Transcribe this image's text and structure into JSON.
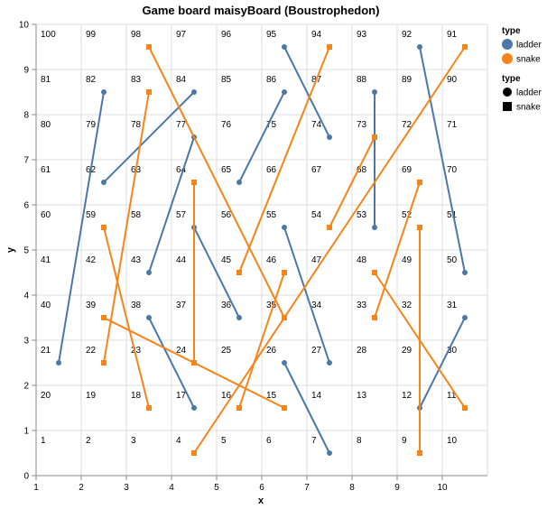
{
  "chart_data": {
    "type": "line",
    "title": "Game board maisyBoard (Boustrophedon)",
    "xlabel": "x",
    "ylabel": "y",
    "xlim": [
      1,
      11
    ],
    "ylim": [
      0,
      10
    ],
    "x_ticks": [
      1,
      2,
      3,
      4,
      5,
      6,
      7,
      8,
      9,
      10
    ],
    "y_ticks": [
      0,
      1,
      2,
      3,
      4,
      5,
      6,
      7,
      8,
      9,
      10
    ],
    "grid": true,
    "legend_position": "right",
    "colors": {
      "ladder": "#4c78a8",
      "snake": "#f58518",
      "grid": "#dddddd",
      "axis": "#888888"
    },
    "cells": [
      {
        "n": "1",
        "x": 1.1,
        "y": 0.8
      },
      {
        "n": "2",
        "x": 2.1,
        "y": 0.8
      },
      {
        "n": "3",
        "x": 3.1,
        "y": 0.8
      },
      {
        "n": "4",
        "x": 4.1,
        "y": 0.8
      },
      {
        "n": "5",
        "x": 5.1,
        "y": 0.8
      },
      {
        "n": "6",
        "x": 6.1,
        "y": 0.8
      },
      {
        "n": "7",
        "x": 7.1,
        "y": 0.8
      },
      {
        "n": "8",
        "x": 8.1,
        "y": 0.8
      },
      {
        "n": "9",
        "x": 9.1,
        "y": 0.8
      },
      {
        "n": "10",
        "x": 10.1,
        "y": 0.8
      },
      {
        "n": "20",
        "x": 1.1,
        "y": 1.8
      },
      {
        "n": "19",
        "x": 2.1,
        "y": 1.8
      },
      {
        "n": "18",
        "x": 3.1,
        "y": 1.8
      },
      {
        "n": "17",
        "x": 4.1,
        "y": 1.8
      },
      {
        "n": "16",
        "x": 5.1,
        "y": 1.8
      },
      {
        "n": "15",
        "x": 6.1,
        "y": 1.8
      },
      {
        "n": "14",
        "x": 7.1,
        "y": 1.8
      },
      {
        "n": "13",
        "x": 8.1,
        "y": 1.8
      },
      {
        "n": "12",
        "x": 9.1,
        "y": 1.8
      },
      {
        "n": "11",
        "x": 10.1,
        "y": 1.8
      },
      {
        "n": "21",
        "x": 1.1,
        "y": 2.8
      },
      {
        "n": "22",
        "x": 2.1,
        "y": 2.8
      },
      {
        "n": "23",
        "x": 3.1,
        "y": 2.8
      },
      {
        "n": "24",
        "x": 4.1,
        "y": 2.8
      },
      {
        "n": "25",
        "x": 5.1,
        "y": 2.8
      },
      {
        "n": "26",
        "x": 6.1,
        "y": 2.8
      },
      {
        "n": "27",
        "x": 7.1,
        "y": 2.8
      },
      {
        "n": "28",
        "x": 8.1,
        "y": 2.8
      },
      {
        "n": "29",
        "x": 9.1,
        "y": 2.8
      },
      {
        "n": "30",
        "x": 10.1,
        "y": 2.8
      },
      {
        "n": "40",
        "x": 1.1,
        "y": 3.8
      },
      {
        "n": "39",
        "x": 2.1,
        "y": 3.8
      },
      {
        "n": "38",
        "x": 3.1,
        "y": 3.8
      },
      {
        "n": "37",
        "x": 4.1,
        "y": 3.8
      },
      {
        "n": "36",
        "x": 5.1,
        "y": 3.8
      },
      {
        "n": "35",
        "x": 6.1,
        "y": 3.8
      },
      {
        "n": "34",
        "x": 7.1,
        "y": 3.8
      },
      {
        "n": "33",
        "x": 8.1,
        "y": 3.8
      },
      {
        "n": "32",
        "x": 9.1,
        "y": 3.8
      },
      {
        "n": "31",
        "x": 10.1,
        "y": 3.8
      },
      {
        "n": "41",
        "x": 1.1,
        "y": 4.8
      },
      {
        "n": "42",
        "x": 2.1,
        "y": 4.8
      },
      {
        "n": "43",
        "x": 3.1,
        "y": 4.8
      },
      {
        "n": "44",
        "x": 4.1,
        "y": 4.8
      },
      {
        "n": "45",
        "x": 5.1,
        "y": 4.8
      },
      {
        "n": "46",
        "x": 6.1,
        "y": 4.8
      },
      {
        "n": "47",
        "x": 7.1,
        "y": 4.8
      },
      {
        "n": "48",
        "x": 8.1,
        "y": 4.8
      },
      {
        "n": "49",
        "x": 9.1,
        "y": 4.8
      },
      {
        "n": "50",
        "x": 10.1,
        "y": 4.8
      },
      {
        "n": "60",
        "x": 1.1,
        "y": 5.8
      },
      {
        "n": "59",
        "x": 2.1,
        "y": 5.8
      },
      {
        "n": "58",
        "x": 3.1,
        "y": 5.8
      },
      {
        "n": "57",
        "x": 4.1,
        "y": 5.8
      },
      {
        "n": "56",
        "x": 5.1,
        "y": 5.8
      },
      {
        "n": "55",
        "x": 6.1,
        "y": 5.8
      },
      {
        "n": "54",
        "x": 7.1,
        "y": 5.8
      },
      {
        "n": "53",
        "x": 8.1,
        "y": 5.8
      },
      {
        "n": "52",
        "x": 9.1,
        "y": 5.8
      },
      {
        "n": "51",
        "x": 10.1,
        "y": 5.8
      },
      {
        "n": "61",
        "x": 1.1,
        "y": 6.8
      },
      {
        "n": "62",
        "x": 2.1,
        "y": 6.8
      },
      {
        "n": "63",
        "x": 3.1,
        "y": 6.8
      },
      {
        "n": "64",
        "x": 4.1,
        "y": 6.8
      },
      {
        "n": "65",
        "x": 5.1,
        "y": 6.8
      },
      {
        "n": "66",
        "x": 6.1,
        "y": 6.8
      },
      {
        "n": "67",
        "x": 7.1,
        "y": 6.8
      },
      {
        "n": "68",
        "x": 8.1,
        "y": 6.8
      },
      {
        "n": "69",
        "x": 9.1,
        "y": 6.8
      },
      {
        "n": "70",
        "x": 10.1,
        "y": 6.8
      },
      {
        "n": "80",
        "x": 1.1,
        "y": 7.8
      },
      {
        "n": "79",
        "x": 2.1,
        "y": 7.8
      },
      {
        "n": "78",
        "x": 3.1,
        "y": 7.8
      },
      {
        "n": "77",
        "x": 4.1,
        "y": 7.8
      },
      {
        "n": "76",
        "x": 5.1,
        "y": 7.8
      },
      {
        "n": "75",
        "x": 6.1,
        "y": 7.8
      },
      {
        "n": "74",
        "x": 7.1,
        "y": 7.8
      },
      {
        "n": "73",
        "x": 8.1,
        "y": 7.8
      },
      {
        "n": "72",
        "x": 9.1,
        "y": 7.8
      },
      {
        "n": "71",
        "x": 10.1,
        "y": 7.8
      },
      {
        "n": "81",
        "x": 1.1,
        "y": 8.8
      },
      {
        "n": "82",
        "x": 2.1,
        "y": 8.8
      },
      {
        "n": "83",
        "x": 3.1,
        "y": 8.8
      },
      {
        "n": "84",
        "x": 4.1,
        "y": 8.8
      },
      {
        "n": "85",
        "x": 5.1,
        "y": 8.8
      },
      {
        "n": "86",
        "x": 6.1,
        "y": 8.8
      },
      {
        "n": "87",
        "x": 7.1,
        "y": 8.8
      },
      {
        "n": "88",
        "x": 8.1,
        "y": 8.8
      },
      {
        "n": "89",
        "x": 9.1,
        "y": 8.8
      },
      {
        "n": "90",
        "x": 10.1,
        "y": 8.8
      },
      {
        "n": "100",
        "x": 1.1,
        "y": 9.8
      },
      {
        "n": "99",
        "x": 2.1,
        "y": 9.8
      },
      {
        "n": "98",
        "x": 3.1,
        "y": 9.8
      },
      {
        "n": "97",
        "x": 4.1,
        "y": 9.8
      },
      {
        "n": "96",
        "x": 5.1,
        "y": 9.8
      },
      {
        "n": "95",
        "x": 6.1,
        "y": 9.8
      },
      {
        "n": "94",
        "x": 7.1,
        "y": 9.8
      },
      {
        "n": "93",
        "x": 8.1,
        "y": 9.8
      },
      {
        "n": "92",
        "x": 9.1,
        "y": 9.8
      },
      {
        "n": "91",
        "x": 10.1,
        "y": 9.8
      }
    ],
    "series": [
      {
        "type": "ladder",
        "points": [
          [
            1.5,
            2.5
          ],
          [
            2.5,
            8.5
          ]
        ]
      },
      {
        "type": "ladder",
        "points": [
          [
            2.5,
            6.5
          ],
          [
            4.5,
            8.5
          ]
        ]
      },
      {
        "type": "ladder",
        "points": [
          [
            3.5,
            4.5
          ],
          [
            4.5,
            7.5
          ]
        ]
      },
      {
        "type": "ladder",
        "points": [
          [
            3.5,
            3.5
          ],
          [
            4.5,
            1.5
          ]
        ]
      },
      {
        "type": "ladder",
        "points": [
          [
            4.5,
            5.5
          ],
          [
            5.5,
            3.5
          ]
        ]
      },
      {
        "type": "ladder",
        "points": [
          [
            5.5,
            6.5
          ],
          [
            6.5,
            8.5
          ]
        ]
      },
      {
        "type": "ladder",
        "points": [
          [
            6.5,
            9.5
          ],
          [
            7.5,
            7.5
          ]
        ]
      },
      {
        "type": "ladder",
        "points": [
          [
            6.5,
            5.5
          ],
          [
            7.5,
            2.5
          ]
        ]
      },
      {
        "type": "ladder",
        "points": [
          [
            6.5,
            2.5
          ],
          [
            7.5,
            0.5
          ]
        ]
      },
      {
        "type": "ladder",
        "points": [
          [
            8.5,
            8.5
          ],
          [
            8.5,
            5.5
          ]
        ]
      },
      {
        "type": "ladder",
        "points": [
          [
            9.5,
            9.5
          ],
          [
            10.5,
            4.5
          ]
        ]
      },
      {
        "type": "ladder",
        "points": [
          [
            9.5,
            1.5
          ],
          [
            10.5,
            3.5
          ]
        ]
      },
      {
        "type": "snake",
        "points": [
          [
            3.5,
            9.5
          ],
          [
            6.5,
            3.5
          ]
        ]
      },
      {
        "type": "snake",
        "points": [
          [
            3.5,
            8.5
          ],
          [
            2.5,
            2.5
          ]
        ]
      },
      {
        "type": "snake",
        "points": [
          [
            2.5,
            5.5
          ],
          [
            3.5,
            1.5
          ]
        ]
      },
      {
        "type": "snake",
        "points": [
          [
            2.5,
            3.5
          ],
          [
            6.5,
            1.5
          ]
        ]
      },
      {
        "type": "snake",
        "points": [
          [
            4.5,
            6.5
          ],
          [
            4.5,
            2.5
          ]
        ]
      },
      {
        "type": "snake",
        "points": [
          [
            7.5,
            9.5
          ],
          [
            5.5,
            4.5
          ]
        ]
      },
      {
        "type": "snake",
        "points": [
          [
            6.5,
            4.5
          ],
          [
            5.5,
            1.5
          ]
        ]
      },
      {
        "type": "snake",
        "points": [
          [
            10.5,
            9.5
          ],
          [
            4.5,
            0.5
          ]
        ]
      },
      {
        "type": "snake",
        "points": [
          [
            8.5,
            7.5
          ],
          [
            7.5,
            5.5
          ]
        ]
      },
      {
        "type": "snake",
        "points": [
          [
            9.5,
            6.5
          ],
          [
            8.5,
            3.5
          ]
        ]
      },
      {
        "type": "snake",
        "points": [
          [
            8.5,
            4.5
          ],
          [
            10.5,
            1.5
          ]
        ]
      },
      {
        "type": "snake",
        "points": [
          [
            9.5,
            5.5
          ],
          [
            9.5,
            0.5
          ]
        ]
      }
    ],
    "legend": {
      "color": {
        "title": "type",
        "entries": [
          "ladder",
          "snake"
        ]
      },
      "shape": {
        "title": "type",
        "entries": [
          "ladder",
          "snake"
        ]
      }
    }
  }
}
